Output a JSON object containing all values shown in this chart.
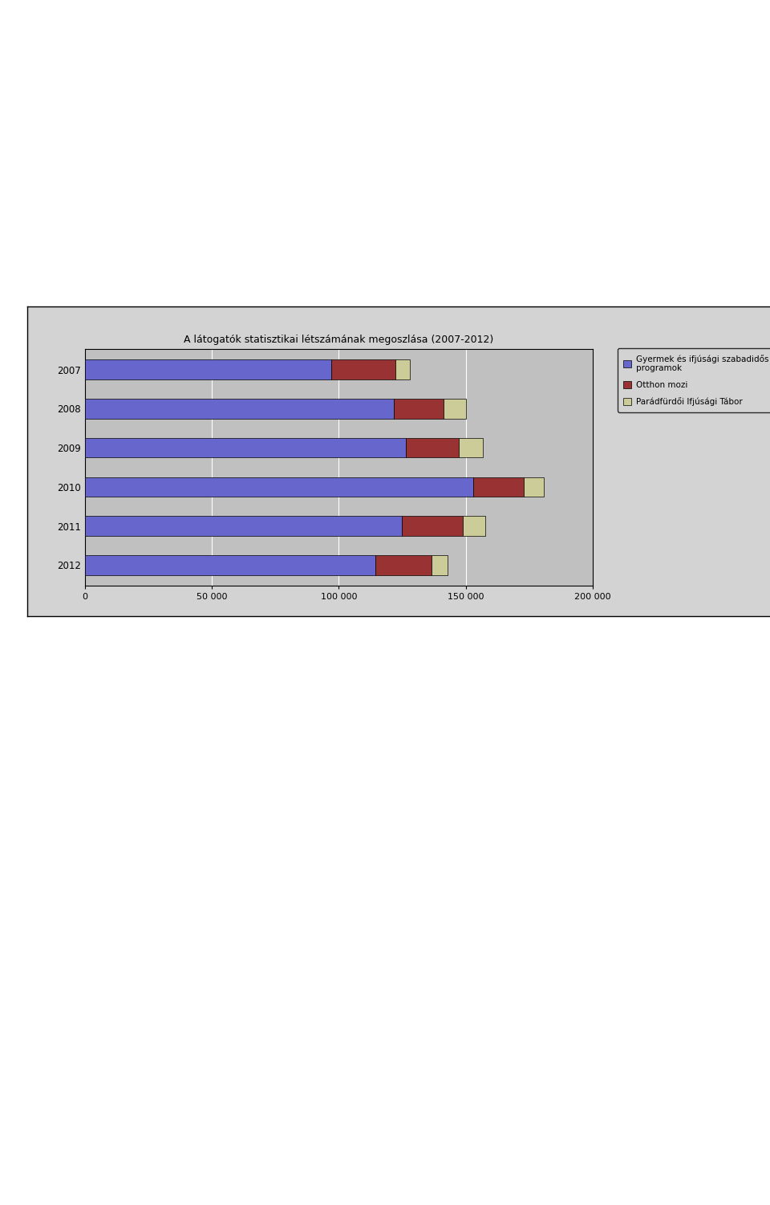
{
  "title": "A látogatók statisztikai létszámának megoszlása (2007-2012)",
  "years": [
    2012,
    2011,
    2010,
    2009,
    2008,
    2007
  ],
  "gyermek": [
    114484,
    124791,
    152876,
    126389,
    121659,
    96939
  ],
  "otthon": [
    22086,
    23948,
    20006,
    20840,
    19456,
    25361
  ],
  "parad": [
    6341,
    8818,
    7793,
    9453,
    8985,
    5771
  ],
  "color_gyermek": "#6666CC",
  "color_otthon": "#993333",
  "color_parad": "#CCCC99",
  "chart_bg": "#D3D3D3",
  "plot_bg": "#C0C0C0",
  "xlim": [
    0,
    200000
  ],
  "xticks": [
    0,
    50000,
    100000,
    150000,
    200000
  ],
  "xtick_labels": [
    "0",
    "50 000",
    "100 000",
    "150 000",
    "200 000"
  ],
  "legend_gyermek": "Gyermek és ifjúsági szabadidős\nprogramok",
  "legend_otthon": "Otthon mozi",
  "legend_parad": "Parádfürdői Ifjúsági Tábor",
  "bar_height": 0.5
}
